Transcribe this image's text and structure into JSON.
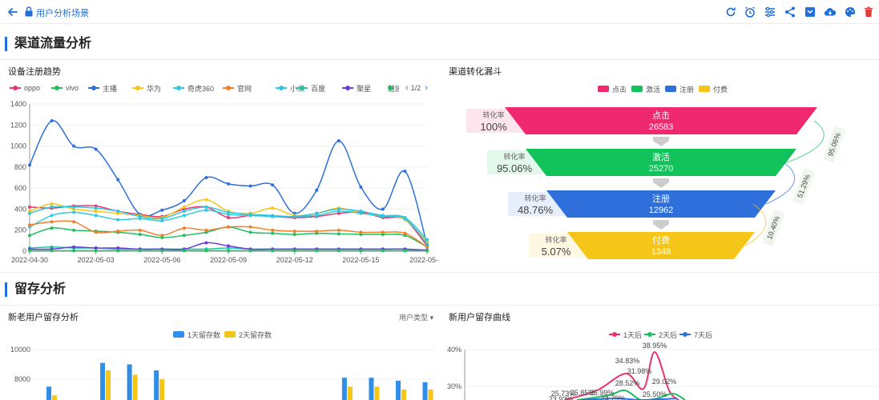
{
  "header": {
    "breadcrumb": "用户分析场景",
    "toolbar_icons": [
      "refresh-icon",
      "alarm-clock-icon",
      "filter-settings-icon",
      "share-icon",
      "save-icon",
      "cloud-download-icon",
      "palette-icon",
      "trash-icon"
    ],
    "accent_color": "#1e6fd9",
    "danger_color": "#e03a3a"
  },
  "sections": {
    "channel": "渠道流量分析",
    "retention": "留存分析"
  },
  "cards": {
    "device_trend": "设备注册趋势",
    "funnel": "渠道转化漏斗",
    "retention_bar": "新老用户留存分析",
    "retention_bar_filter": "用户类型",
    "retention_curve": "新用户留存曲线"
  },
  "device_legend_page": "1/2",
  "funnel_labels": {
    "rate_label": "转化率"
  },
  "chart_data": [
    {
      "type": "line",
      "title": "设备注册趋势",
      "ylim": [
        0,
        1400
      ],
      "y_ticks": [
        "0",
        "200",
        "400",
        "600",
        "800",
        "1000",
        "1200",
        "1400"
      ],
      "x_ticks": [
        "2022-04-30",
        "2022-05-03",
        "2022-05-06",
        "2022-05-09",
        "2022-05-12",
        "2022-05-15",
        "2022-05-"
      ],
      "x_count": 19,
      "series": [
        {
          "name": "oppo",
          "color": "#e8356d",
          "values": [
            420,
            410,
            430,
            430,
            380,
            350,
            330,
            400,
            420,
            320,
            340,
            330,
            320,
            330,
            360,
            370,
            320,
            300,
            50
          ]
        },
        {
          "name": "vivo",
          "color": "#1fbf5f",
          "values": [
            150,
            220,
            200,
            190,
            180,
            160,
            130,
            150,
            180,
            230,
            180,
            170,
            160,
            170,
            165,
            160,
            160,
            150,
            40
          ]
        },
        {
          "name": "主播",
          "color": "#2f6fdb",
          "values": [
            820,
            1240,
            1000,
            970,
            680,
            350,
            390,
            480,
            700,
            640,
            620,
            630,
            360,
            580,
            1050,
            610,
            400,
            760,
            60
          ]
        },
        {
          "name": "华为",
          "color": "#f5c518",
          "values": [
            380,
            450,
            400,
            380,
            360,
            340,
            320,
            420,
            490,
            380,
            360,
            410,
            340,
            360,
            410,
            360,
            340,
            300,
            90
          ]
        },
        {
          "name": "奇虎360",
          "color": "#33c9dc",
          "values": [
            230,
            340,
            370,
            340,
            300,
            310,
            290,
            340,
            390,
            350,
            340,
            330,
            330,
            340,
            380,
            360,
            330,
            310,
            70
          ]
        },
        {
          "name": "官网",
          "color": "#f07f2c",
          "values": [
            250,
            280,
            280,
            180,
            190,
            200,
            150,
            220,
            200,
            230,
            230,
            200,
            190,
            190,
            200,
            180,
            180,
            170,
            40
          ]
        },
        {
          "name": "小米",
          "color": "#2dc6e0",
          "values": [
            360,
            420,
            420,
            410,
            380,
            330,
            310,
            380,
            420,
            370,
            350,
            340,
            330,
            360,
            400,
            380,
            340,
            320,
            110
          ]
        },
        {
          "name": "百度",
          "color": "#22c4a4",
          "values": [
            30,
            40,
            30,
            30,
            20,
            20,
            20,
            20,
            20,
            30,
            20,
            20,
            20,
            20,
            20,
            20,
            20,
            20,
            10
          ]
        },
        {
          "name": "聚星",
          "color": "#6a3ed6",
          "values": [
            20,
            20,
            40,
            30,
            30,
            20,
            20,
            20,
            80,
            50,
            20,
            20,
            20,
            20,
            20,
            20,
            20,
            20,
            10
          ]
        },
        {
          "name": "魅族",
          "color": "#1fbf5f",
          "values": [
            5,
            5,
            5,
            5,
            5,
            5,
            5,
            5,
            5,
            5,
            5,
            5,
            5,
            5,
            5,
            5,
            5,
            5,
            5
          ]
        }
      ]
    },
    {
      "type": "funnel",
      "title": "渠道转化漏斗",
      "stages": [
        {
          "name": "点击",
          "value": "26583",
          "rate": "100%",
          "color": "#f0286e"
        },
        {
          "name": "激活",
          "value": "25270",
          "rate": "95.06%",
          "color": "#12c25a"
        },
        {
          "name": "注册",
          "value": "12962",
          "rate": "48.76%",
          "color": "#2f6fdb"
        },
        {
          "name": "付费",
          "value": "1348",
          "rate": "5.07%",
          "color": "#f5c518"
        }
      ],
      "step_rates": [
        "95.06%",
        "51.29%",
        "10.40%"
      ]
    },
    {
      "type": "bar",
      "title": "新老用户留存分析",
      "ylim": [
        0,
        10000
      ],
      "y_ticks": [
        "10000",
        "8000"
      ],
      "series": [
        {
          "name": "1天留存数",
          "color": "#2f8ee8",
          "values": [
            7500,
            0,
            9100,
            9000,
            8600,
            0,
            0,
            0,
            0,
            0,
            0,
            8100,
            8100,
            7900,
            7800
          ]
        },
        {
          "name": "2天留存数",
          "color": "#f5c518",
          "values": [
            6900,
            0,
            8600,
            8300,
            8000,
            0,
            0,
            0,
            0,
            0,
            0,
            7500,
            7500,
            7300,
            7300
          ]
        }
      ]
    },
    {
      "type": "line",
      "title": "新用户留存曲线",
      "ylim": [
        0,
        40
      ],
      "y_ticks": [
        "40%",
        "30%"
      ],
      "series": [
        {
          "name": "1天后",
          "color": "#e8356d"
        },
        {
          "name": "2天后",
          "color": "#1fbf5f"
        },
        {
          "name": "7天后",
          "color": "#2f6fdb"
        }
      ],
      "data_labels": [
        "38.95%",
        "34.83%",
        "31.98%",
        "29.02%",
        "28.52%",
        "25.50%",
        "25.73%",
        "25.85%",
        "25.99%",
        "24.79%",
        "23.93%"
      ]
    }
  ]
}
